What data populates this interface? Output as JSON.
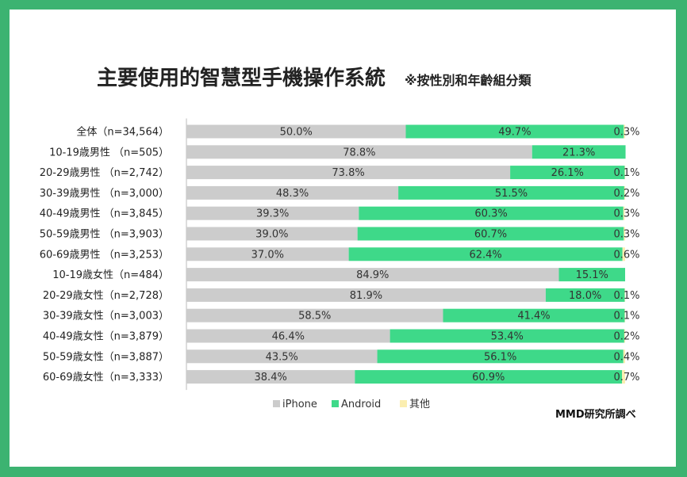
{
  "page": {
    "title": "主要使用的智慧型手機操作系統",
    "subtitle": "※按性別和年齡組分類",
    "source": "MMD研究所調べ"
  },
  "colors": {
    "iphone": "#cccccc",
    "android": "#3ed989",
    "other": "#fbeeb0",
    "frame": "#3cb371"
  },
  "chart_data": {
    "type": "bar",
    "orientation": "horizontal",
    "stacked": true,
    "title": "主要使用的智慧型手機操作系統",
    "subtitle": "※按性別和年齡組分類",
    "xlim": [
      0,
      100
    ],
    "grid": false,
    "legend_position": "bottom",
    "categories": [
      "全体（n=34,564）",
      "10-19歳男性 （n=505）",
      "20-29歳男性 （n=2,742）",
      "30-39歳男性 （n=3,000）",
      "40-49歳男性 （n=3,845）",
      "50-59歳男性 （n=3,903）",
      "60-69歳男性 （n=3,253）",
      "10-19歳女性（n=484）",
      "20-29歳女性（n=2,728）",
      "30-39歳女性（n=3,003）",
      "40-49歳女性（n=3,879）",
      "50-59歳女性（n=3,887）",
      "60-69歳女性（n=3,333）"
    ],
    "series": [
      {
        "name": "iPhone",
        "values": [
          50.0,
          78.8,
          73.8,
          48.3,
          39.3,
          39.0,
          37.0,
          84.9,
          81.9,
          58.5,
          46.4,
          43.5,
          38.4
        ],
        "labels": [
          "50.0%",
          "78.8%",
          "73.8%",
          "48.3%",
          "39.3%",
          "39.0%",
          "37.0%",
          "84.9%",
          "81.9%",
          "58.5%",
          "46.4%",
          "43.5%",
          "38.4%"
        ]
      },
      {
        "name": "Android",
        "values": [
          49.7,
          21.3,
          26.1,
          51.5,
          60.3,
          60.7,
          62.4,
          15.1,
          18.0,
          41.4,
          53.4,
          56.1,
          60.9
        ],
        "labels": [
          "49.7%",
          "21.3%",
          "26.1%",
          "51.5%",
          "60.3%",
          "60.7%",
          "62.4%",
          "15.1%",
          "18.0%",
          "41.4%",
          "53.4%",
          "56.1%",
          "60.9%"
        ]
      },
      {
        "name": "其他",
        "values": [
          0.3,
          0.0,
          0.1,
          0.2,
          0.3,
          0.3,
          0.6,
          0.0,
          0.1,
          0.1,
          0.2,
          0.4,
          0.7
        ],
        "labels": [
          "0.3%",
          "",
          "0.1%",
          "0.2%",
          "0.3%",
          "0.3%",
          "0.6%",
          "",
          "0.1%",
          "0.1%",
          "0.2%",
          "0.4%",
          "0.7%"
        ]
      }
    ]
  }
}
